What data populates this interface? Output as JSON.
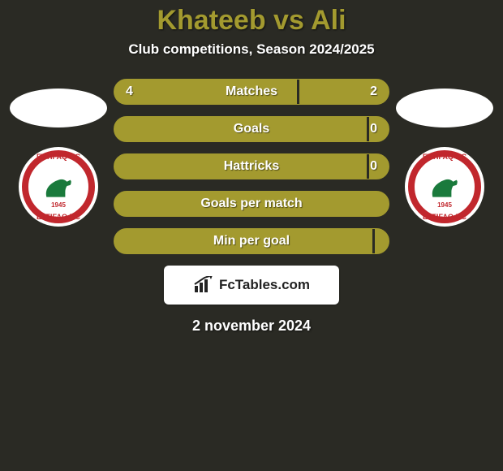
{
  "background_color": "#2a2a24",
  "title": {
    "player1": "Khateeb",
    "vs": " vs ",
    "player2": "Ali",
    "color": "#a39a2f",
    "fontsize": 34
  },
  "subtitle": {
    "text": "Club competitions, Season 2024/2025",
    "color": "#ffffff",
    "fontsize": 17
  },
  "club_logo": {
    "top_text": "ETTIFAQ F.C",
    "bottom_text": "ETTIFAQ F.C",
    "year": "1945",
    "ring_color": "#c1272d",
    "horse_color": "#1a7a3c"
  },
  "bars": {
    "track_color": "#a39a2f",
    "left_color": "#a39a2f",
    "right_color": "#a39a2f",
    "divider_color": "#2a2a24",
    "label_color": "#ffffff",
    "value_color": "#ffffff",
    "height": 32,
    "radius": 16,
    "gap": 14,
    "rows": [
      {
        "label": "Matches",
        "left_val": "4",
        "right_val": "2",
        "left_pct": 66.7,
        "right_pct": 33.3,
        "show_vals": true
      },
      {
        "label": "Goals",
        "left_val": "",
        "right_val": "0",
        "left_pct": 92.0,
        "right_pct": 8.0,
        "show_vals": true
      },
      {
        "label": "Hattricks",
        "left_val": "",
        "right_val": "0",
        "left_pct": 92.0,
        "right_pct": 8.0,
        "show_vals": true
      },
      {
        "label": "Goals per match",
        "left_val": "",
        "right_val": "",
        "left_pct": 100,
        "right_pct": 0,
        "show_vals": false
      },
      {
        "label": "Min per goal",
        "left_val": "",
        "right_val": "",
        "left_pct": 94.0,
        "right_pct": 6.0,
        "show_vals": false
      }
    ]
  },
  "watermark": {
    "text": "FcTables.com",
    "box_bg": "#ffffff",
    "icon_color": "#222222"
  },
  "date": {
    "text": "2 november 2024",
    "color": "#ffffff",
    "fontsize": 18
  }
}
